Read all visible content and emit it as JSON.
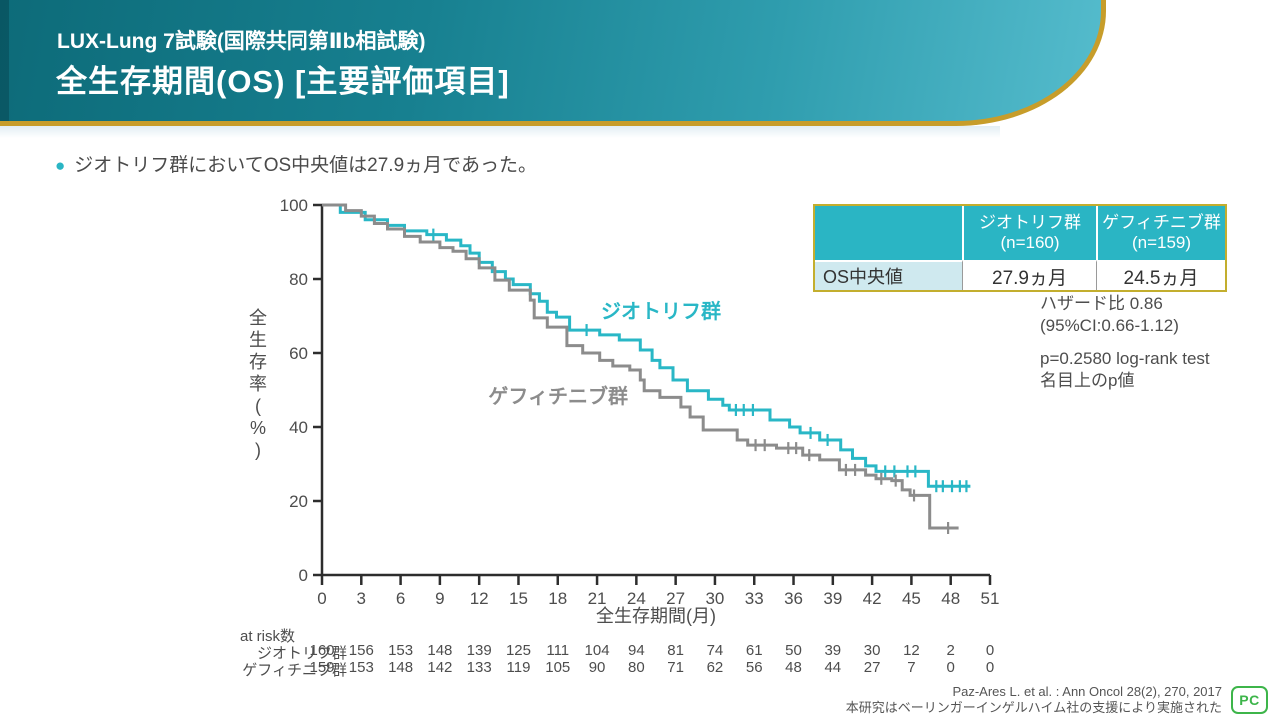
{
  "header": {
    "subtitle": "LUX-Lung 7試験(国際共同第Ⅱb相試験)",
    "title": "全生存期間(OS) [主要評価項目]",
    "band_color_left": "#0d6b79",
    "band_color_right": "#55bccd",
    "gold_line_color": "#c79d2a"
  },
  "bullet": "ジオトリフ群においてOS中央値は27.9ヵ月であった。",
  "summary_table": {
    "col1": {
      "line1": "ジオトリフ群",
      "line2": "(n=160)"
    },
    "col2": {
      "line1": "ゲフィチニブ群",
      "line2": "(n=159)"
    },
    "row_label": "OS中央値",
    "val1": "27.9ヵ月",
    "val2": "24.5ヵ月",
    "header_bg": "#2ab5c4",
    "label_bg": "#cfe9ef",
    "border_gold": "#c3ae2e"
  },
  "stats": {
    "hr1": "ハザード比 0.86",
    "hr2": "(95%CI:0.66-1.12)",
    "p1": "p=0.2580 log-rank test",
    "p2": "名目上のp値"
  },
  "footer": {
    "cite1": "Paz-Ares L. et al. : Ann Oncol 28(2), 270, 2017",
    "cite2": "本研究はベーリンガーインゲルハイム社の支援により実施された",
    "logo_text": "PC",
    "logo_color": "#3db54a"
  },
  "chart_data": {
    "type": "line",
    "subtype": "kaplan-meier-step",
    "title": "",
    "xlabel": "全生存期間(月)",
    "ylabel": "全生存率(%)",
    "xlim": [
      0,
      51
    ],
    "ylim": [
      0,
      100
    ],
    "grid": false,
    "xticks": [
      0,
      3,
      6,
      9,
      12,
      15,
      18,
      21,
      24,
      27,
      30,
      33,
      36,
      39,
      42,
      45,
      48,
      51
    ],
    "yticks": [
      0,
      20,
      40,
      60,
      80,
      100
    ],
    "series": [
      {
        "name": "ジオトリフ群",
        "color": "#29b7c6",
        "median_months": 27.9,
        "label_at": [
          21.3,
          69.5
        ],
        "points": [
          [
            0,
            100
          ],
          [
            1.4,
            98
          ],
          [
            3.3,
            96
          ],
          [
            5,
            94.5
          ],
          [
            6.3,
            93
          ],
          [
            8,
            92
          ],
          [
            9.5,
            90.5
          ],
          [
            10.6,
            89
          ],
          [
            11.3,
            87
          ],
          [
            12,
            84.5
          ],
          [
            13,
            82
          ],
          [
            14,
            80
          ],
          [
            14.6,
            78.5
          ],
          [
            15.9,
            76
          ],
          [
            16.6,
            74
          ],
          [
            17.2,
            71
          ],
          [
            17.9,
            69.7
          ],
          [
            18.9,
            66.2
          ],
          [
            21.2,
            64.9
          ],
          [
            22.7,
            63.5
          ],
          [
            24.3,
            60.8
          ],
          [
            25.2,
            58
          ],
          [
            25.8,
            56
          ],
          [
            26.8,
            52.7
          ],
          [
            27.9,
            49.8
          ],
          [
            29.5,
            47.5
          ],
          [
            30.6,
            45.9
          ],
          [
            31.1,
            44.6
          ],
          [
            34.2,
            41.9
          ],
          [
            35.7,
            40
          ],
          [
            36.5,
            38.4
          ],
          [
            38,
            36.5
          ],
          [
            39.6,
            33.8
          ],
          [
            40.5,
            31.5
          ],
          [
            41.5,
            29.5
          ],
          [
            42.3,
            28
          ],
          [
            46.3,
            24
          ],
          [
            49.5,
            24
          ]
        ],
        "censors": [
          [
            8.5,
            92
          ],
          [
            20.2,
            66.2
          ],
          [
            31.6,
            44.6
          ],
          [
            32.2,
            44.6
          ],
          [
            32.9,
            44.6
          ],
          [
            37.3,
            38.4
          ],
          [
            38.6,
            36.5
          ],
          [
            43,
            28
          ],
          [
            43.7,
            28
          ],
          [
            44.7,
            28
          ],
          [
            45.3,
            28
          ],
          [
            46.9,
            24
          ],
          [
            47.4,
            24
          ],
          [
            48.1,
            24
          ],
          [
            48.7,
            24
          ],
          [
            49.2,
            24
          ]
        ]
      },
      {
        "name": "ゲフィチニブ群",
        "color": "#8c8c8c",
        "median_months": 24.5,
        "label_at": [
          12.7,
          46.5
        ],
        "points": [
          [
            0,
            100
          ],
          [
            1.8,
            98.5
          ],
          [
            3,
            97
          ],
          [
            4,
            95
          ],
          [
            5,
            93.5
          ],
          [
            6.3,
            91.5
          ],
          [
            7.5,
            90
          ],
          [
            9,
            88.5
          ],
          [
            10,
            87.5
          ],
          [
            11,
            85.5
          ],
          [
            12,
            83
          ],
          [
            13.2,
            79.7
          ],
          [
            14.3,
            77
          ],
          [
            15.9,
            74.3
          ],
          [
            16.2,
            69.5
          ],
          [
            17.2,
            67
          ],
          [
            18.7,
            62
          ],
          [
            19.9,
            60
          ],
          [
            21.2,
            58
          ],
          [
            22.2,
            56.5
          ],
          [
            23.5,
            55.4
          ],
          [
            24.3,
            52.7
          ],
          [
            24.6,
            49.8
          ],
          [
            25.8,
            48
          ],
          [
            27.4,
            45.4
          ],
          [
            28.1,
            42.7
          ],
          [
            29.1,
            39.2
          ],
          [
            31.7,
            36.5
          ],
          [
            32.5,
            35.1
          ],
          [
            34.7,
            34.3
          ],
          [
            36.7,
            32.4
          ],
          [
            38,
            31.1
          ],
          [
            39.5,
            28.4
          ],
          [
            41.5,
            27
          ],
          [
            42.3,
            26
          ],
          [
            43.5,
            25.5
          ],
          [
            44.3,
            23
          ],
          [
            44.9,
            21.5
          ],
          [
            46.4,
            12.7
          ],
          [
            48.6,
            12.7
          ]
        ],
        "censors": [
          [
            33.1,
            35.1
          ],
          [
            33.8,
            35.1
          ],
          [
            35.6,
            34.3
          ],
          [
            36.2,
            34.3
          ],
          [
            37.2,
            32.4
          ],
          [
            40,
            28.4
          ],
          [
            40.7,
            28.4
          ],
          [
            42.7,
            26
          ],
          [
            43.8,
            25.5
          ],
          [
            45.2,
            21.5
          ],
          [
            47.8,
            12.7
          ]
        ]
      }
    ],
    "at_risk": {
      "label": "at risk数",
      "rows": [
        {
          "name": "ジオトリフ群",
          "counts": [
            160,
            156,
            153,
            148,
            139,
            125,
            111,
            104,
            94,
            81,
            74,
            61,
            50,
            39,
            30,
            12,
            2,
            0
          ]
        },
        {
          "name": "ゲフィチニブ群",
          "counts": [
            159,
            153,
            148,
            142,
            133,
            119,
            105,
            90,
            80,
            71,
            62,
            56,
            48,
            44,
            27,
            7,
            0,
            0
          ]
        }
      ]
    }
  }
}
